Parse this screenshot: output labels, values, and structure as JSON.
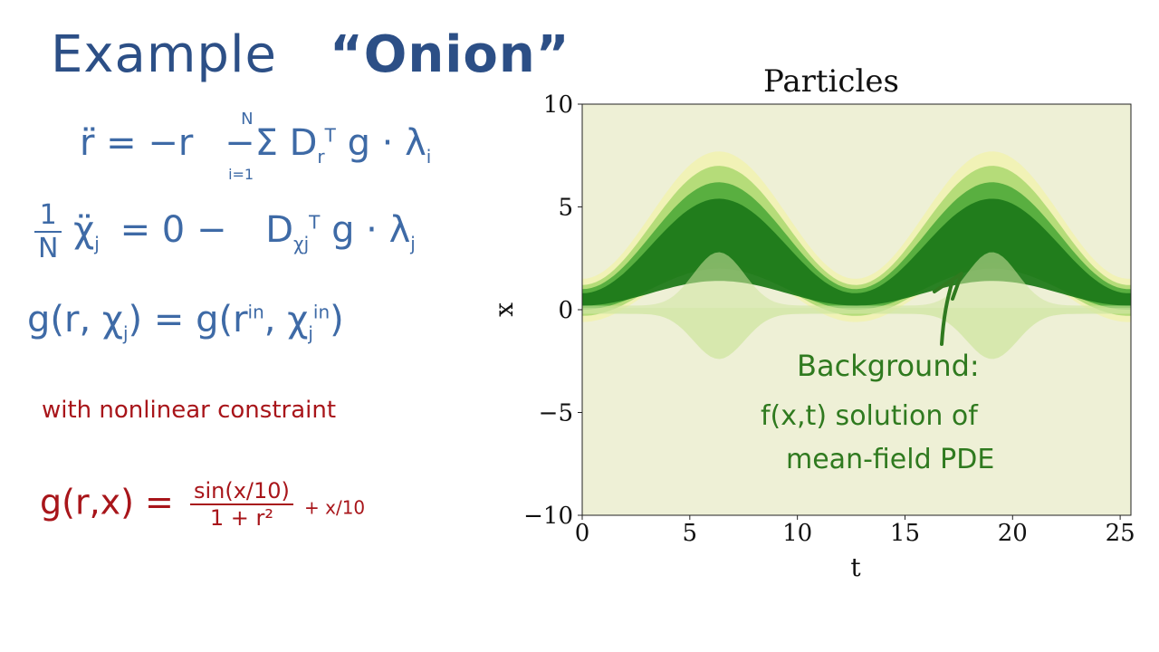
{
  "notes": {
    "title_word": "Example",
    "title_quote": "“Onion”",
    "eq1": {
      "lhs": "r̈ = −r",
      "sum_top": "N",
      "sum_bottom": "i=1",
      "rhs": "−Σ D",
      "rhs_sub": "r",
      "rhs_sup": "T",
      "rhs_tail": "g · λ",
      "rhs_tail_sub": "i"
    },
    "eq2": {
      "frac_num": "1",
      "frac_den": "N",
      "lhs": "χ̈",
      "lhs_sub": "j",
      "mid": "= 0  −",
      "rhs": "D",
      "rhs_sub": "χj",
      "rhs_sup": "T",
      "rhs_tail": "g · λ",
      "rhs_tail_sub": "j"
    },
    "eq3": {
      "text_a": "g(r, χ",
      "sub_a": "j",
      "text_b": ") = g(r",
      "sup_b": "in",
      "text_c": ", χ",
      "sub_c": "j",
      "sup_c": "in",
      "text_d": ")"
    },
    "constraint_label": "with nonlinear constraint",
    "eq4": {
      "lhs": "g(r,x) =",
      "num": "sin(x/10)",
      "den": "1 + r²",
      "tail": "+ x/10"
    },
    "annotation": {
      "line1": "Background:",
      "line2": "f(x,t) solution of",
      "line3": "mean-field PDE"
    }
  },
  "chart_data": {
    "type": "heatmap",
    "title": "Particles",
    "xlabel": "t",
    "ylabel": "x",
    "xlim": [
      0,
      25.5
    ],
    "ylim": [
      -10,
      10
    ],
    "xticks": [
      "0",
      "5",
      "10",
      "15",
      "20",
      "25"
    ],
    "yticks": [
      "10",
      "5",
      "0",
      "−5",
      "−10"
    ],
    "grid": false,
    "description_values": {
      "upper_band_peaks_t": [
        6.6,
        19.3
      ],
      "upper_band_peak_x": 6,
      "upper_band_trough_t": 13,
      "upper_band_trough_x": 0.6,
      "lower_band_dips_x": -2
    },
    "colors": {
      "background": "#eef0d6",
      "dense": "#1f7a1a",
      "light": "#c8e29a"
    }
  }
}
